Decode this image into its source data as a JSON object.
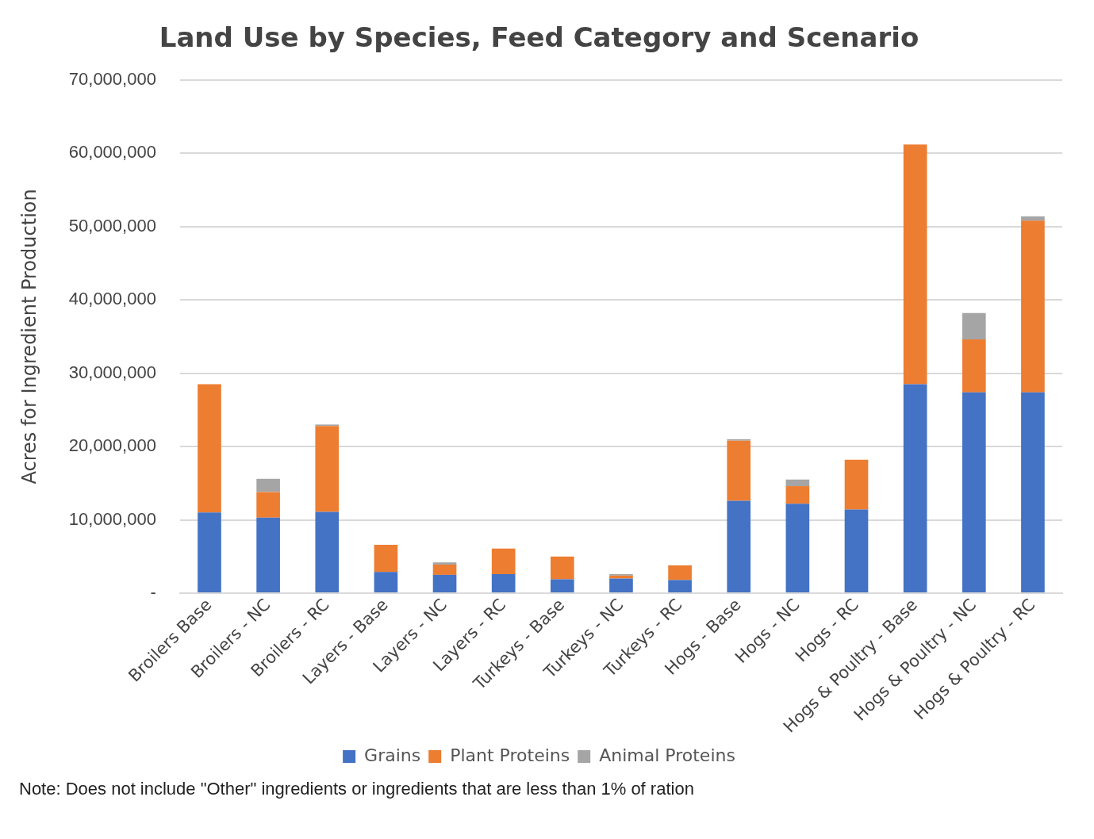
{
  "chart_data": {
    "type": "bar",
    "title": "Land Use by Species, Feed Category and Scenario",
    "ylabel": "Acres for Ingredient Production",
    "categories": [
      "Broilers Base",
      "Broilers - NC",
      "Broilers - RC",
      "Layers - Base",
      "Layers - NC",
      "Layers - RC",
      "Turkeys - Base",
      "Turkeys - NC",
      "Turkeys - RC",
      "Hogs - Base",
      "Hogs - NC",
      "Hogs - RC",
      "Hogs & Poultry - Base",
      "Hogs & Poultry - NC",
      "Hogs & Poultry - RC"
    ],
    "stacked": true,
    "series": [
      {
        "name": "Grains",
        "color": "#4472c4",
        "values": [
          11000000,
          10300000,
          11100000,
          2900000,
          2500000,
          2600000,
          1900000,
          2000000,
          1800000,
          12600000,
          12200000,
          11400000,
          28500000,
          27400000,
          27400000
        ]
      },
      {
        "name": "Plant Proteins",
        "color": "#ed7d31",
        "values": [
          17500000,
          3500000,
          11700000,
          3700000,
          1400000,
          3500000,
          3100000,
          400000,
          2000000,
          8200000,
          2400000,
          6800000,
          32700000,
          7200000,
          23400000
        ]
      },
      {
        "name": "Animal Proteins",
        "color": "#a5a5a5",
        "values": [
          0,
          1800000,
          200000,
          0,
          300000,
          0,
          0,
          200000,
          0,
          200000,
          900000,
          0,
          0,
          3600000,
          600000
        ]
      }
    ],
    "ylim": [
      0,
      70000000
    ],
    "yticks": [
      {
        "value": 0,
        "label": "-"
      },
      {
        "value": 10000000,
        "label": "10,000,000"
      },
      {
        "value": 20000000,
        "label": "20,000,000"
      },
      {
        "value": 30000000,
        "label": "30,000,000"
      },
      {
        "value": 40000000,
        "label": "40,000,000"
      },
      {
        "value": 50000000,
        "label": "50,000,000"
      },
      {
        "value": 60000000,
        "label": "60,000,000"
      },
      {
        "value": 70000000,
        "label": "70,000,000"
      }
    ],
    "grid": "y",
    "legend": "bottom",
    "annotations": [
      "Note: Does not include \"Other\" ingredients or ingredients that are less than 1% of ration"
    ]
  }
}
